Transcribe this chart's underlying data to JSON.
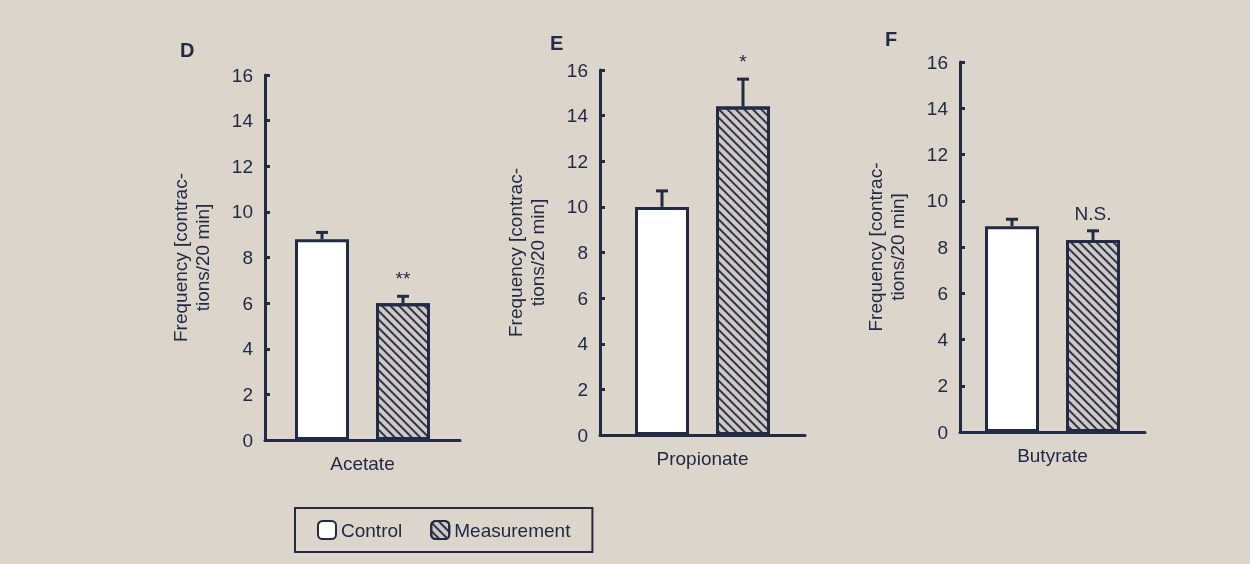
{
  "chart_data": [
    {
      "type": "bar",
      "title": "D",
      "ylabel": "Frequency [contrac-\ntions/20 min]",
      "categories": [
        "Acetate"
      ],
      "ylim": [
        0,
        16
      ],
      "yticks": [
        0,
        2,
        4,
        6,
        8,
        10,
        12,
        14,
        16
      ],
      "grid": false,
      "series": [
        {
          "color": "#ffffff",
          "values": [
            8.8
          ],
          "errors": [
            [
              8.8,
              9.1
            ]
          ]
        },
        {
          "color": "#2b3452",
          "values": [
            6.0
          ],
          "errors": [
            [
              6.0,
              6.3
            ]
          ]
        }
      ],
      "annotations": [
        "**"
      ]
    },
    {
      "type": "bar",
      "title": "E",
      "ylabel": "Frequency [contrac-\ntions/20 min]",
      "categories": [
        "Propionate"
      ],
      "ylim": [
        0,
        16
      ],
      "yticks": [
        0,
        2,
        4,
        6,
        8,
        10,
        12,
        14,
        16
      ],
      "grid": false,
      "legend": "bottom",
      "series": [
        {
          "name": "Control",
          "color": "#ffffff",
          "values": [
            10.0
          ],
          "errors": [
            [
              10.0,
              10.7
            ]
          ]
        },
        {
          "name": "Measurement",
          "color": "#2b3452",
          "values": [
            14.4
          ],
          "errors": [
            [
              14.4,
              15.6
            ]
          ]
        }
      ],
      "annotations": [
        "*"
      ]
    },
    {
      "type": "bar",
      "title": "F",
      "ylabel": "Frequency [contrac-\ntions/20 min]",
      "categories": [
        "Butyrate"
      ],
      "ylim": [
        0,
        16
      ],
      "yticks": [
        0,
        2,
        4,
        6,
        8,
        10,
        12,
        14,
        16
      ],
      "grid": false,
      "series": [
        {
          "color": "#ffffff",
          "values": [
            8.9
          ],
          "errors": [
            [
              8.9,
              9.2
            ]
          ]
        },
        {
          "color": "#2b3452",
          "values": [
            8.3
          ],
          "errors": [
            [
              8.3,
              8.7
            ]
          ]
        }
      ],
      "annotations": [
        "N.S."
      ]
    }
  ]
}
